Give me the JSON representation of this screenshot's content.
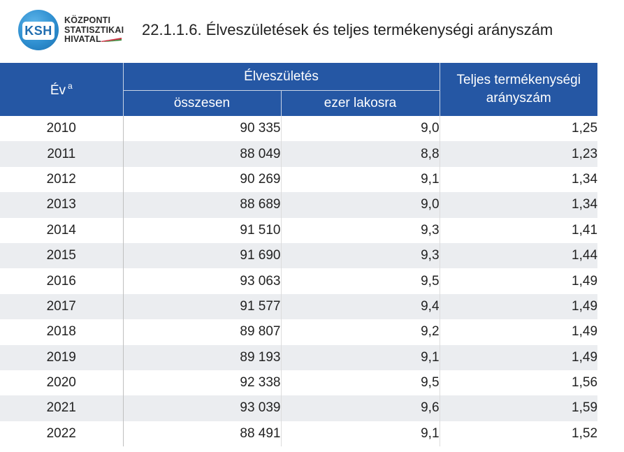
{
  "logo": {
    "abbr": "KSH",
    "line1": "KÖZPONTI",
    "line2": "STATISZTIKAI",
    "line3": "HIVATAL"
  },
  "title": "22.1.1.6. Élveszületések és teljes termékenységi arányszám",
  "table": {
    "col_year": "Év",
    "col_year_note": "a",
    "group_live_births": "Élveszületés",
    "col_total": "összesen",
    "col_per_thousand": "ezer lakosra",
    "col_tfr": "Teljes termékenységi arányszám",
    "rows": [
      {
        "year": "2010",
        "total": "90 335",
        "per1000": "9,0",
        "tfr": "1,25"
      },
      {
        "year": "2011",
        "total": "88 049",
        "per1000": "8,8",
        "tfr": "1,23"
      },
      {
        "year": "2012",
        "total": "90 269",
        "per1000": "9,1",
        "tfr": "1,34"
      },
      {
        "year": "2013",
        "total": "88 689",
        "per1000": "9,0",
        "tfr": "1,34"
      },
      {
        "year": "2014",
        "total": "91 510",
        "per1000": "9,3",
        "tfr": "1,41"
      },
      {
        "year": "2015",
        "total": "91 690",
        "per1000": "9,3",
        "tfr": "1,44"
      },
      {
        "year": "2016",
        "total": "93 063",
        "per1000": "9,5",
        "tfr": "1,49"
      },
      {
        "year": "2017",
        "total": "91 577",
        "per1000": "9,4",
        "tfr": "1,49"
      },
      {
        "year": "2018",
        "total": "89 807",
        "per1000": "9,2",
        "tfr": "1,49"
      },
      {
        "year": "2019",
        "total": "89 193",
        "per1000": "9,1",
        "tfr": "1,49"
      },
      {
        "year": "2020",
        "total": "92 338",
        "per1000": "9,5",
        "tfr": "1,56"
      },
      {
        "year": "2021",
        "total": "93 039",
        "per1000": "9,6",
        "tfr": "1,59"
      },
      {
        "year": "2022",
        "total": "88 491",
        "per1000": "9,1",
        "tfr": "1,52"
      }
    ]
  },
  "colors": {
    "header_bg": "#2557a4",
    "stripe_bg": "#ebedf0",
    "logo_blue": "#2f8fd0"
  }
}
